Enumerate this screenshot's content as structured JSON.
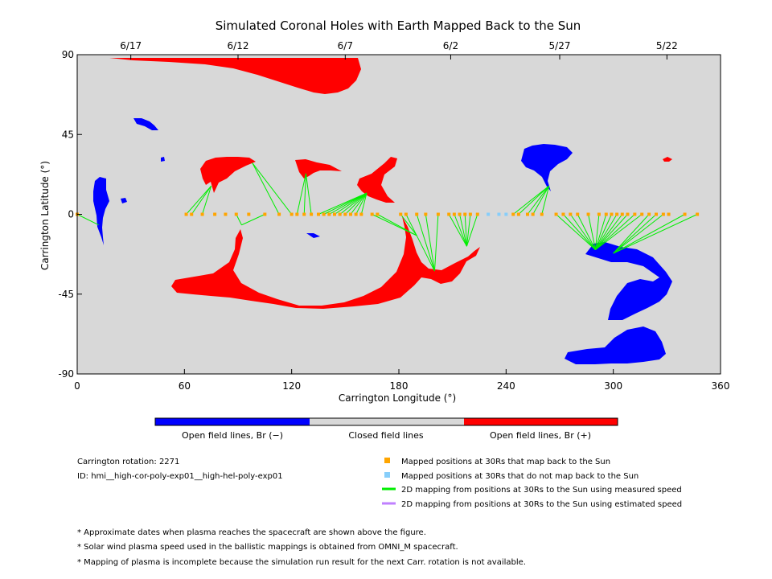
{
  "chart_data": {
    "type": "scatter",
    "title": "Simulated Coronal Holes with Earth Mapped Back to the Sun",
    "xlabel": "Carrington Longitude (°)",
    "ylabel": "Carrington Latitude (°)",
    "xlim": [
      0,
      360
    ],
    "ylim": [
      -90,
      90
    ],
    "x_ticks": [
      0,
      60,
      120,
      180,
      240,
      300,
      360
    ],
    "y_ticks": [
      -90,
      -45,
      0,
      45,
      90
    ],
    "top_axis": {
      "ticks": [
        {
          "label": "6/17",
          "lon": 30
        },
        {
          "label": "6/12",
          "lon": 90
        },
        {
          "label": "6/7",
          "lon": 150
        },
        {
          "label": "6/2",
          "lon": 209
        },
        {
          "label": "5/27",
          "lon": 270
        },
        {
          "label": "5/22",
          "lon": 330
        }
      ]
    },
    "colors": {
      "background": "#d8d8d8",
      "open_negative": "#0000ff",
      "open_positive": "#ff0000",
      "mapped": "#ffa500",
      "unmapped": "#87cefa",
      "measured": "#00ee00",
      "estimated": "#c080ff"
    },
    "open_negative_regions": [
      {
        "lon": 48.0,
        "lat": 62.0
      },
      {
        "lon": 13.0,
        "lat": 8.0
      },
      {
        "lon": 27.0,
        "lat": 8.0
      },
      {
        "lon": 48.0,
        "lat": 30.0
      },
      {
        "lon": 132.0,
        "lat": -12.0
      },
      {
        "lon": 264.0,
        "lat": 30.0
      },
      {
        "lon": 300.0,
        "lat": -35.0
      },
      {
        "lon": 305.0,
        "lat": -78.0
      }
    ],
    "open_positive_regions": [
      {
        "lon": 100.0,
        "lat": 82.0
      },
      {
        "lon": 85.0,
        "lat": 23.0
      },
      {
        "lon": 135.0,
        "lat": 27.0
      },
      {
        "lon": 165.0,
        "lat": 18.0
      },
      {
        "lon": 150.0,
        "lat": -30.0
      },
      {
        "lon": 330.0,
        "lat": 30.0
      }
    ],
    "mapped_points": [
      {
        "lon": 0,
        "lat": 0,
        "source_lon": 12,
        "source_lat": -6
      },
      {
        "lon": 61,
        "lat": 0,
        "source_lon": 75,
        "source_lat": 16
      },
      {
        "lon": 64,
        "lat": 0,
        "source_lon": 75,
        "source_lat": 16
      },
      {
        "lon": 70,
        "lat": 0,
        "source_lon": 75,
        "source_lat": 16
      },
      {
        "lon": 77,
        "lat": 0
      },
      {
        "lon": 83,
        "lat": 0
      },
      {
        "lon": 89,
        "lat": 0,
        "source_lon": 92,
        "source_lat": -6
      },
      {
        "lon": 96,
        "lat": 0
      },
      {
        "lon": 105,
        "lat": 0,
        "source_lon": 92,
        "source_lat": -6
      },
      {
        "lon": 113,
        "lat": 0,
        "source_lon": 98,
        "source_lat": 29
      },
      {
        "lon": 120,
        "lat": 0,
        "source_lon": 98,
        "source_lat": 29
      },
      {
        "lon": 123,
        "lat": 0,
        "source_lon": 128,
        "source_lat": 23
      },
      {
        "lon": 127,
        "lat": 0,
        "source_lon": 128,
        "source_lat": 23
      },
      {
        "lon": 131,
        "lat": 0,
        "source_lon": 128,
        "source_lat": 23
      },
      {
        "lon": 135,
        "lat": 0,
        "source_lon": 162,
        "source_lat": 12
      },
      {
        "lon": 138,
        "lat": 0,
        "source_lon": 162,
        "source_lat": 12
      },
      {
        "lon": 141,
        "lat": 0,
        "source_lon": 162,
        "source_lat": 12
      },
      {
        "lon": 144,
        "lat": 0,
        "source_lon": 162,
        "source_lat": 12
      },
      {
        "lon": 147,
        "lat": 0,
        "source_lon": 162,
        "source_lat": 12
      },
      {
        "lon": 150,
        "lat": 0,
        "source_lon": 162,
        "source_lat": 12
      },
      {
        "lon": 153,
        "lat": 0,
        "source_lon": 162,
        "source_lat": 12
      },
      {
        "lon": 156,
        "lat": 0,
        "source_lon": 162,
        "source_lat": 12
      },
      {
        "lon": 159,
        "lat": 0,
        "source_lon": 162,
        "source_lat": 12
      },
      {
        "lon": 165,
        "lat": 0,
        "source_lon": 190,
        "source_lat": -12
      },
      {
        "lon": 168,
        "lat": 0,
        "source_lon": 190,
        "source_lat": -12
      },
      {
        "lon": 181,
        "lat": 0,
        "source_lon": 190,
        "source_lat": -12
      },
      {
        "lon": 184,
        "lat": 0,
        "source_lon": 200,
        "source_lat": -32
      },
      {
        "lon": 190,
        "lat": 0,
        "source_lon": 200,
        "source_lat": -32
      },
      {
        "lon": 195,
        "lat": 0,
        "source_lon": 200,
        "source_lat": -32
      },
      {
        "lon": 202,
        "lat": 0,
        "source_lon": 200,
        "source_lat": -32
      },
      {
        "lon": 208,
        "lat": 0,
        "source_lon": 218,
        "source_lat": -18
      },
      {
        "lon": 211,
        "lat": 0,
        "source_lon": 218,
        "source_lat": -18
      },
      {
        "lon": 214,
        "lat": 0,
        "source_lon": 218,
        "source_lat": -18
      },
      {
        "lon": 217,
        "lat": 0,
        "source_lon": 218,
        "source_lat": -18
      },
      {
        "lon": 220,
        "lat": 0,
        "source_lon": 218,
        "source_lat": -18
      },
      {
        "lon": 224,
        "lat": 0,
        "source_lon": 218,
        "source_lat": -18
      },
      {
        "lon": 244,
        "lat": 0,
        "source_lon": 264,
        "source_lat": 16
      },
      {
        "lon": 247,
        "lat": 0,
        "source_lon": 264,
        "source_lat": 16
      },
      {
        "lon": 252,
        "lat": 0,
        "source_lon": 264,
        "source_lat": 16
      },
      {
        "lon": 255,
        "lat": 0,
        "source_lon": 264,
        "source_lat": 16
      },
      {
        "lon": 260,
        "lat": 0,
        "source_lon": 264,
        "source_lat": 16
      },
      {
        "lon": 268,
        "lat": 0,
        "source_lon": 290,
        "source_lat": -20
      },
      {
        "lon": 272,
        "lat": 0,
        "source_lon": 290,
        "source_lat": -20
      },
      {
        "lon": 276,
        "lat": 0,
        "source_lon": 290,
        "source_lat": -20
      },
      {
        "lon": 280,
        "lat": 0,
        "source_lon": 290,
        "source_lat": -20
      },
      {
        "lon": 286,
        "lat": 0,
        "source_lon": 290,
        "source_lat": -20
      },
      {
        "lon": 292,
        "lat": 0,
        "source_lon": 290,
        "source_lat": -20
      },
      {
        "lon": 296,
        "lat": 0,
        "source_lon": 290,
        "source_lat": -20
      },
      {
        "lon": 299,
        "lat": 0,
        "source_lon": 290,
        "source_lat": -20
      },
      {
        "lon": 302,
        "lat": 0,
        "source_lon": 290,
        "source_lat": -20
      },
      {
        "lon": 305,
        "lat": 0,
        "source_lon": 290,
        "source_lat": -20
      },
      {
        "lon": 308,
        "lat": 0,
        "source_lon": 290,
        "source_lat": -20
      },
      {
        "lon": 312,
        "lat": 0,
        "source_lon": 290,
        "source_lat": -20
      },
      {
        "lon": 316,
        "lat": 0,
        "source_lon": 290,
        "source_lat": -20
      },
      {
        "lon": 320,
        "lat": 0,
        "source_lon": 300,
        "source_lat": -22
      },
      {
        "lon": 324,
        "lat": 0,
        "source_lon": 300,
        "source_lat": -22
      },
      {
        "lon": 328,
        "lat": 0,
        "source_lon": 300,
        "source_lat": -22
      },
      {
        "lon": 331,
        "lat": 0
      },
      {
        "lon": 340,
        "lat": 0,
        "source_lon": 300,
        "source_lat": -22
      },
      {
        "lon": 347,
        "lat": 0,
        "source_lon": 300,
        "source_lat": -22
      }
    ],
    "unmapped_points": [
      {
        "lon": 230,
        "lat": 0
      },
      {
        "lon": 236,
        "lat": 0
      },
      {
        "lon": 240,
        "lat": 0
      }
    ],
    "colorbar": {
      "labels": [
        "Open field lines, Br (−)",
        "Closed field lines",
        "Open field lines, Br (+)"
      ]
    },
    "legend": {
      "mapped": "Mapped positions at 30Rs that map back to the Sun",
      "unmapped": "Mapped positions at 30Rs that do not map back to the Sun",
      "measured": "2D mapping from positions at 30Rs to the Sun using measured speed",
      "estimated": "2D mapping from positions at 30Rs to the Sun using estimated speed"
    }
  },
  "info": {
    "rotation": "Carrington rotation: 2271",
    "id": "ID: hmi__high-cor-poly-exp01__high-hel-poly-exp01"
  },
  "notes": [
    "* Approximate dates when plasma reaches the spacecraft are shown above the figure.",
    "* Solar wind plasma speed used in the ballistic mappings is obtained from OMNI_M spacecraft.",
    "* Mapping of plasma is incomplete because the simulation run result for the next Carr. rotation is not available."
  ]
}
